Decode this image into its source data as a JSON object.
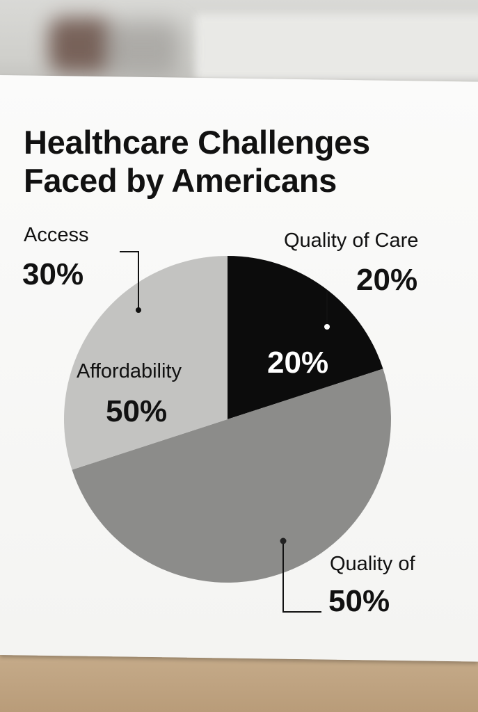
{
  "title": {
    "line1": "Healthcare Challenges",
    "line2": "Faced by Americans"
  },
  "chart_data": {
    "type": "pie",
    "title": "Healthcare Challenges Faced by Americans",
    "slices": [
      {
        "label": "Quality of Care",
        "value": 20,
        "color": "#0c0c0c"
      },
      {
        "label": "Quality of",
        "value": 50,
        "color": "#8c8c8a"
      },
      {
        "label": "Access",
        "value": 30,
        "color": "#c3c3c1"
      }
    ]
  },
  "labels": {
    "access_name": "Access",
    "access_pct": "30%",
    "quality_care_name": "Quality of Care",
    "quality_care_pct": "20%",
    "black_slice_pct": "20%",
    "affordability_name": "Affordability",
    "affordability_pct": "50%",
    "quality_of_name": "Quality of",
    "quality_of_pct": "50%"
  },
  "colors": {
    "text": "#111111",
    "slice_label_light": "#ffffff"
  }
}
